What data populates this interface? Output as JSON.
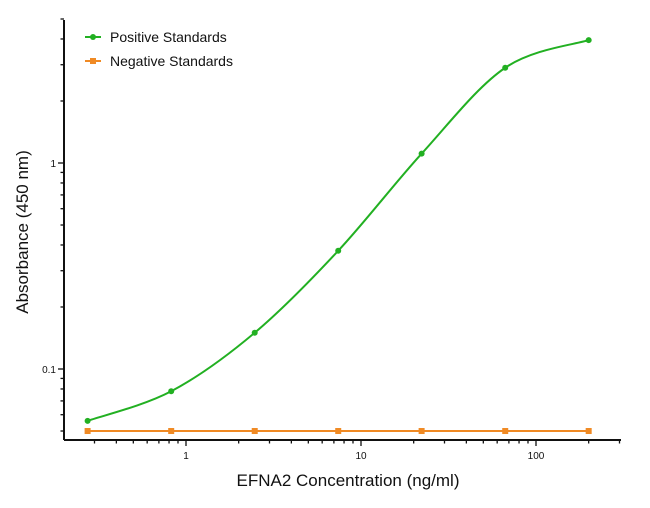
{
  "chart_data": {
    "type": "line",
    "title": "",
    "xlabel": "EFNA2 Concentration (ng/ml)",
    "ylabel": "Absorbance (450 nm)",
    "x_scale": "log",
    "y_scale": "log",
    "xlim": [
      0.22,
      330
    ],
    "ylim": [
      0.045,
      4.6
    ],
    "x_ticks": [
      {
        "value": 1,
        "label": "1"
      },
      {
        "value": 10,
        "label": "10"
      },
      {
        "value": 100,
        "label": "100"
      }
    ],
    "y_ticks": [
      {
        "value": 0.1,
        "label": "0.1"
      },
      {
        "value": 1,
        "label": "1"
      }
    ],
    "grid": false,
    "legend_placement": "top-left",
    "x": [
      0.274,
      0.823,
      2.47,
      7.41,
      22.2,
      66.7,
      200
    ],
    "series": [
      {
        "name": "Positive Standards",
        "color": "#22b022",
        "marker": "circle",
        "values": [
          0.056,
          0.078,
          0.15,
          0.375,
          1.11,
          2.9,
          3.95
        ]
      },
      {
        "name": "Negative Standards",
        "color": "#f08a24",
        "marker": "square",
        "values": [
          0.05,
          0.05,
          0.05,
          0.05,
          0.05,
          0.05,
          0.05
        ]
      }
    ]
  }
}
